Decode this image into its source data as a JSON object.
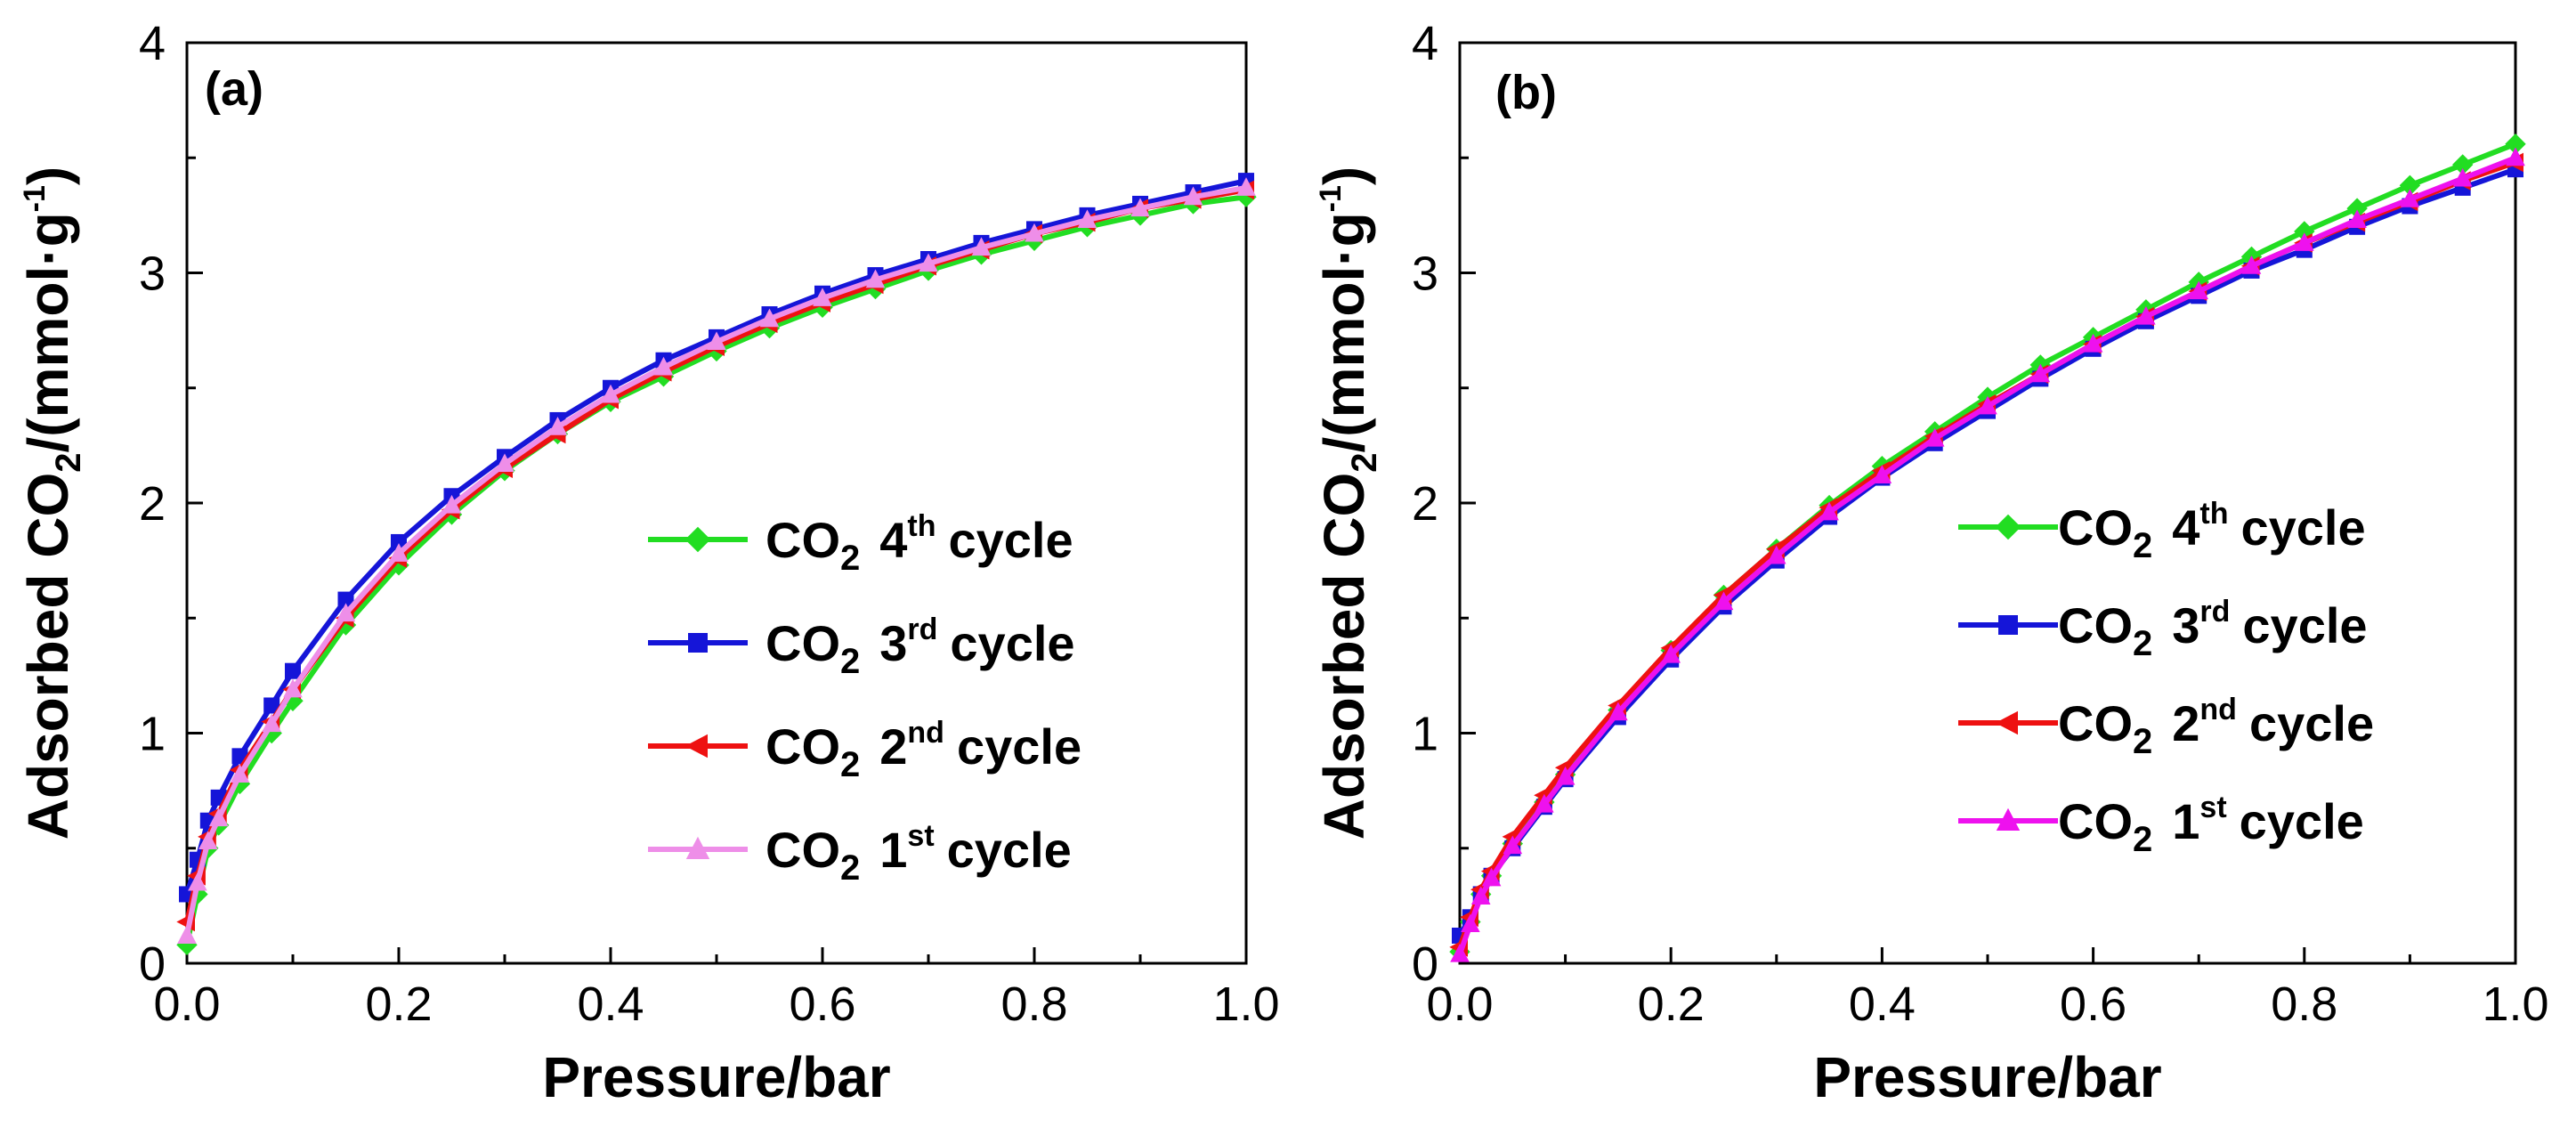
{
  "chart_data": [
    {
      "type": "line",
      "panel_label": "(a)",
      "xlabel": "Pressure/bar",
      "ylabel_parts": {
        "main": "Adsorbed CO",
        "sub": "2",
        "mid": "/(mmol·g",
        "sup": "-1",
        "end": ")"
      },
      "xlim": [
        0.0,
        1.0
      ],
      "ylim": [
        0,
        4
      ],
      "xticks": [
        "0.0",
        "0.2",
        "0.4",
        "0.6",
        "0.8",
        "1.0"
      ],
      "yticks": [
        "0",
        "1",
        "2",
        "3",
        "4"
      ],
      "legend_position": "center-right",
      "series": [
        {
          "name": "4th cycle",
          "gas": "CO",
          "gas_sub": "2",
          "ordinal": "4",
          "ordinal_sup": "th",
          "suffix": "cycle",
          "color": "#22dd22",
          "marker": "diamond",
          "x": [
            0.0,
            0.01,
            0.02,
            0.03,
            0.05,
            0.08,
            0.1,
            0.15,
            0.2,
            0.25,
            0.3,
            0.35,
            0.4,
            0.45,
            0.5,
            0.55,
            0.6,
            0.65,
            0.7,
            0.75,
            0.8,
            0.85,
            0.9,
            0.95,
            1.0
          ],
          "y": [
            0.08,
            0.3,
            0.5,
            0.6,
            0.78,
            1.0,
            1.14,
            1.47,
            1.73,
            1.95,
            2.14,
            2.3,
            2.44,
            2.55,
            2.66,
            2.76,
            2.85,
            2.93,
            3.01,
            3.08,
            3.14,
            3.2,
            3.25,
            3.3,
            3.33
          ]
        },
        {
          "name": "3rd cycle",
          "gas": "CO",
          "gas_sub": "2",
          "ordinal": "3",
          "ordinal_sup": "rd",
          "suffix": "cycle",
          "color": "#1515d8",
          "marker": "square",
          "x": [
            0.0,
            0.01,
            0.02,
            0.03,
            0.05,
            0.08,
            0.1,
            0.15,
            0.2,
            0.25,
            0.3,
            0.35,
            0.4,
            0.45,
            0.5,
            0.55,
            0.6,
            0.65,
            0.7,
            0.75,
            0.8,
            0.85,
            0.9,
            0.95,
            1.0
          ],
          "y": [
            0.3,
            0.45,
            0.62,
            0.72,
            0.9,
            1.12,
            1.27,
            1.58,
            1.83,
            2.03,
            2.2,
            2.36,
            2.5,
            2.62,
            2.72,
            2.82,
            2.91,
            2.99,
            3.06,
            3.13,
            3.19,
            3.25,
            3.3,
            3.35,
            3.4
          ]
        },
        {
          "name": "2nd cycle",
          "gas": "CO",
          "gas_sub": "2",
          "ordinal": "2",
          "ordinal_sup": "nd",
          "suffix": "cycle",
          "color": "#ee1111",
          "marker": "triangle-left",
          "x": [
            0.0,
            0.01,
            0.02,
            0.03,
            0.05,
            0.08,
            0.1,
            0.15,
            0.2,
            0.25,
            0.3,
            0.35,
            0.4,
            0.45,
            0.5,
            0.55,
            0.6,
            0.65,
            0.7,
            0.75,
            0.8,
            0.85,
            0.9,
            0.95,
            1.0
          ],
          "y": [
            0.18,
            0.38,
            0.55,
            0.65,
            0.84,
            1.05,
            1.19,
            1.5,
            1.76,
            1.97,
            2.15,
            2.3,
            2.45,
            2.57,
            2.68,
            2.78,
            2.87,
            2.95,
            3.03,
            3.1,
            3.17,
            3.22,
            3.28,
            3.32,
            3.36
          ]
        },
        {
          "name": "1st cycle",
          "gas": "CO",
          "gas_sub": "2",
          "ordinal": "1",
          "ordinal_sup": "st",
          "suffix": "cycle",
          "color": "#ee8ee8",
          "marker": "triangle-up",
          "x": [
            0.0,
            0.01,
            0.02,
            0.03,
            0.05,
            0.08,
            0.1,
            0.15,
            0.2,
            0.25,
            0.3,
            0.35,
            0.4,
            0.45,
            0.5,
            0.55,
            0.6,
            0.65,
            0.7,
            0.75,
            0.8,
            0.85,
            0.9,
            0.95,
            1.0
          ],
          "y": [
            0.12,
            0.35,
            0.53,
            0.63,
            0.82,
            1.04,
            1.19,
            1.52,
            1.78,
            1.99,
            2.17,
            2.33,
            2.47,
            2.59,
            2.7,
            2.8,
            2.89,
            2.97,
            3.04,
            3.11,
            3.17,
            3.23,
            3.28,
            3.33,
            3.37
          ]
        }
      ]
    },
    {
      "type": "line",
      "panel_label": "(b)",
      "xlabel": "Pressure/bar",
      "ylabel_parts": {
        "main": "Adsorbed CO",
        "sub": "2",
        "mid": "/(mmol·g",
        "sup": "-1",
        "end": ")"
      },
      "xlim": [
        0.0,
        1.0
      ],
      "ylim": [
        0,
        4
      ],
      "xticks": [
        "0.0",
        "0.2",
        "0.4",
        "0.6",
        "0.8",
        "1.0"
      ],
      "yticks": [
        "0",
        "1",
        "2",
        "3",
        "4"
      ],
      "legend_position": "center-right",
      "series": [
        {
          "name": "4th cycle",
          "gas": "CO",
          "gas_sub": "2",
          "ordinal": "4",
          "ordinal_sup": "th",
          "suffix": "cycle",
          "color": "#22dd22",
          "marker": "diamond",
          "x": [
            0.0,
            0.01,
            0.02,
            0.03,
            0.05,
            0.08,
            0.1,
            0.15,
            0.2,
            0.25,
            0.3,
            0.35,
            0.4,
            0.45,
            0.5,
            0.55,
            0.6,
            0.65,
            0.7,
            0.75,
            0.8,
            0.85,
            0.9,
            0.95,
            1.0
          ],
          "y": [
            0.05,
            0.18,
            0.3,
            0.38,
            0.52,
            0.7,
            0.82,
            1.1,
            1.36,
            1.6,
            1.8,
            1.99,
            2.16,
            2.31,
            2.46,
            2.6,
            2.72,
            2.84,
            2.96,
            3.07,
            3.18,
            3.28,
            3.38,
            3.47,
            3.56
          ]
        },
        {
          "name": "3rd cycle",
          "gas": "CO",
          "gas_sub": "2",
          "ordinal": "3",
          "ordinal_sup": "rd",
          "suffix": "cycle",
          "color": "#1515d8",
          "marker": "square",
          "x": [
            0.0,
            0.01,
            0.02,
            0.03,
            0.05,
            0.08,
            0.1,
            0.15,
            0.2,
            0.25,
            0.3,
            0.35,
            0.4,
            0.45,
            0.5,
            0.55,
            0.6,
            0.65,
            0.7,
            0.75,
            0.8,
            0.85,
            0.9,
            0.95,
            1.0
          ],
          "y": [
            0.12,
            0.2,
            0.3,
            0.38,
            0.5,
            0.68,
            0.8,
            1.07,
            1.32,
            1.55,
            1.75,
            1.94,
            2.11,
            2.26,
            2.4,
            2.54,
            2.67,
            2.79,
            2.9,
            3.01,
            3.1,
            3.2,
            3.29,
            3.37,
            3.45
          ]
        },
        {
          "name": "2nd cycle",
          "gas": "CO",
          "gas_sub": "2",
          "ordinal": "2",
          "ordinal_sup": "nd",
          "suffix": "cycle",
          "color": "#ee1111",
          "marker": "triangle-left",
          "x": [
            0.0,
            0.01,
            0.02,
            0.03,
            0.05,
            0.08,
            0.1,
            0.15,
            0.2,
            0.25,
            0.3,
            0.35,
            0.4,
            0.45,
            0.5,
            0.55,
            0.6,
            0.65,
            0.7,
            0.75,
            0.8,
            0.85,
            0.9,
            0.95,
            1.0
          ],
          "y": [
            0.07,
            0.2,
            0.32,
            0.4,
            0.55,
            0.73,
            0.85,
            1.12,
            1.37,
            1.6,
            1.8,
            1.98,
            2.14,
            2.29,
            2.43,
            2.56,
            2.69,
            2.81,
            2.92,
            3.03,
            3.13,
            3.22,
            3.31,
            3.4,
            3.48
          ]
        },
        {
          "name": "1st cycle",
          "gas": "CO",
          "gas_sub": "2",
          "ordinal": "1",
          "ordinal_sup": "st",
          "suffix": "cycle",
          "color": "#ee11ee",
          "marker": "triangle-up",
          "x": [
            0.0,
            0.01,
            0.02,
            0.03,
            0.05,
            0.08,
            0.1,
            0.15,
            0.2,
            0.25,
            0.3,
            0.35,
            0.4,
            0.45,
            0.5,
            0.55,
            0.6,
            0.65,
            0.7,
            0.75,
            0.8,
            0.85,
            0.9,
            0.95,
            1.0
          ],
          "y": [
            0.04,
            0.17,
            0.29,
            0.37,
            0.51,
            0.69,
            0.81,
            1.09,
            1.34,
            1.57,
            1.77,
            1.96,
            2.12,
            2.28,
            2.42,
            2.56,
            2.69,
            2.81,
            2.92,
            3.03,
            3.13,
            3.23,
            3.32,
            3.41,
            3.5
          ]
        }
      ]
    }
  ]
}
